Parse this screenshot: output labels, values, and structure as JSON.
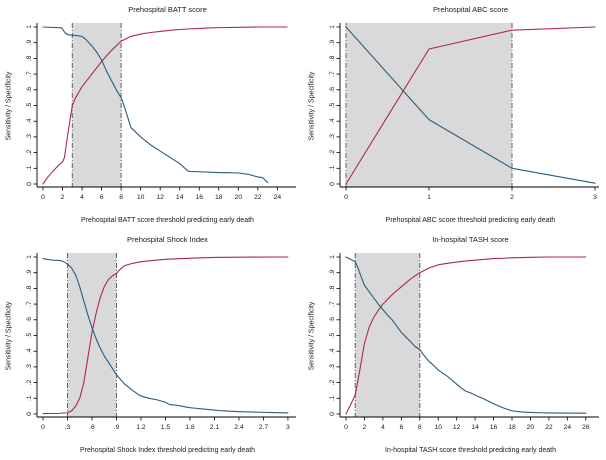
{
  "figure": {
    "background": "#ffffff"
  },
  "colors": {
    "sensitivity_line": "#a92a4e",
    "specificity_line": "#275d7f",
    "band_fill": "#d9d9d9",
    "band_edge": "#5f5f5f",
    "axis_line": "#000000",
    "text": "#1a1a1a"
  },
  "chart_data": [
    {
      "type": "line",
      "title": "Prehospital BATT score",
      "xlabel": "Prehospital BATT score threshold predicting early death",
      "ylabel": "Sensitivity / Specificity",
      "xlim": [
        0,
        25.5
      ],
      "ylim": [
        0,
        1
      ],
      "grid": false,
      "legend": "none",
      "xtick_values": [
        0,
        2,
        4,
        6,
        8,
        10,
        12,
        14,
        16,
        18,
        20,
        22,
        24
      ],
      "xtick_labels": [
        "0",
        "2",
        "4",
        "6",
        "8",
        "10",
        "12",
        "14",
        "16",
        "18",
        "20",
        "22",
        "24"
      ],
      "ytick_values": [
        0,
        0.1,
        0.2,
        0.3,
        0.4,
        0.5,
        0.6,
        0.7,
        0.8,
        0.9,
        1
      ],
      "ytick_labels": [
        "0",
        ".1",
        ".2",
        ".3",
        ".4",
        ".5",
        ".6",
        ".7",
        ".8",
        ".9",
        "1"
      ],
      "shaded_band": {
        "from": 3,
        "to": 8
      },
      "series": [
        {
          "name": "Sensitivity",
          "color_key": "sensitivity_line",
          "points": [
            [
              0,
              0
            ],
            [
              0.5,
              0.045
            ],
            [
              1,
              0.08
            ],
            [
              1.6,
              0.12
            ],
            [
              2,
              0.14
            ],
            [
              2.2,
              0.17
            ],
            [
              2.5,
              0.3
            ],
            [
              2.8,
              0.42
            ],
            [
              3,
              0.5
            ],
            [
              3.3,
              0.545
            ],
            [
              4,
              0.62
            ],
            [
              5,
              0.7
            ],
            [
              6,
              0.78
            ],
            [
              7,
              0.85
            ],
            [
              8,
              0.91
            ],
            [
              8.5,
              0.925
            ],
            [
              9,
              0.94
            ],
            [
              10,
              0.955
            ],
            [
              11,
              0.965
            ],
            [
              12,
              0.972
            ],
            [
              13,
              0.979
            ],
            [
              14,
              0.984
            ],
            [
              15,
              0.988
            ],
            [
              16,
              0.991
            ],
            [
              17,
              0.994
            ],
            [
              18,
              0.996
            ],
            [
              20,
              0.998
            ],
            [
              22,
              1.0
            ],
            [
              25,
              1.0
            ]
          ]
        },
        {
          "name": "Specificity",
          "color_key": "specificity_line",
          "points": [
            [
              0,
              1.0
            ],
            [
              1.9,
              0.995
            ],
            [
              2.3,
              0.96
            ],
            [
              2.6,
              0.95
            ],
            [
              3.5,
              0.945
            ],
            [
              4,
              0.94
            ],
            [
              4.4,
              0.92
            ],
            [
              5,
              0.88
            ],
            [
              5.5,
              0.84
            ],
            [
              6,
              0.79
            ],
            [
              6.5,
              0.72
            ],
            [
              7,
              0.66
            ],
            [
              7.5,
              0.6
            ],
            [
              8,
              0.55
            ],
            [
              8.3,
              0.5
            ],
            [
              8.7,
              0.42
            ],
            [
              9,
              0.36
            ],
            [
              9.5,
              0.33
            ],
            [
              10,
              0.3
            ],
            [
              11,
              0.25
            ],
            [
              12,
              0.21
            ],
            [
              13,
              0.17
            ],
            [
              14,
              0.13
            ],
            [
              14.8,
              0.085
            ],
            [
              15,
              0.08
            ],
            [
              16,
              0.078
            ],
            [
              17,
              0.075
            ],
            [
              18,
              0.073
            ],
            [
              19,
              0.072
            ],
            [
              20,
              0.07
            ],
            [
              21,
              0.062
            ],
            [
              22,
              0.045
            ],
            [
              22.5,
              0.04
            ],
            [
              23,
              0.01
            ]
          ]
        }
      ]
    },
    {
      "type": "line",
      "title": "Prehospital ABC score",
      "xlabel": "Prehospital ABC score threshold predicting early death",
      "ylabel": "Sensitivity / Specificity",
      "xlim": [
        0,
        3
      ],
      "ylim": [
        0,
        1
      ],
      "grid": false,
      "legend": "none",
      "xtick_values": [
        0,
        1,
        2,
        3
      ],
      "xtick_labels": [
        "0",
        "1",
        "2",
        "3"
      ],
      "ytick_values": [
        0,
        0.1,
        0.2,
        0.3,
        0.4,
        0.5,
        0.6,
        0.7,
        0.8,
        0.9,
        1
      ],
      "ytick_labels": [
        "0",
        ".1",
        ".2",
        ".3",
        ".4",
        ".5",
        ".6",
        ".7",
        ".8",
        ".9",
        "1"
      ],
      "shaded_band": {
        "from": 0,
        "to": 2
      },
      "series": [
        {
          "name": "Sensitivity",
          "color_key": "sensitivity_line",
          "points": [
            [
              0,
              0
            ],
            [
              1,
              0.86
            ],
            [
              2,
              0.98
            ],
            [
              3,
              1.0
            ]
          ]
        },
        {
          "name": "Specificity",
          "color_key": "specificity_line",
          "points": [
            [
              0,
              1.0
            ],
            [
              1,
              0.41
            ],
            [
              2,
              0.1
            ],
            [
              3,
              0.005
            ]
          ]
        }
      ]
    },
    {
      "type": "line",
      "title": "Prehospital Shock Index",
      "xlabel": "Prehospital Shock Index threshold predicting early death",
      "ylabel": "Sensitivity / Specificity",
      "xlim": [
        0,
        3.05
      ],
      "ylim": [
        0,
        1
      ],
      "grid": false,
      "legend": "none",
      "xtick_values": [
        0,
        0.3,
        0.6,
        0.9,
        1.2,
        1.5,
        1.8,
        2.1,
        2.4,
        2.7,
        3
      ],
      "xtick_labels": [
        "0",
        ".3",
        ".6",
        ".9",
        "1.2",
        "1.5",
        "1.8",
        "2.1",
        "2.4",
        "2.7",
        "3"
      ],
      "ytick_values": [
        0,
        0.1,
        0.2,
        0.3,
        0.4,
        0.5,
        0.6,
        0.7,
        0.8,
        0.9,
        1
      ],
      "ytick_labels": [
        "0",
        ".1",
        ".2",
        ".3",
        ".4",
        ".5",
        ".6",
        ".7",
        ".8",
        ".9",
        "1"
      ],
      "shaded_band": {
        "from": 0.3,
        "to": 0.9
      },
      "series": [
        {
          "name": "Sensitivity",
          "color_key": "sensitivity_line",
          "points": [
            [
              0,
              0.003
            ],
            [
              0.2,
              0.004
            ],
            [
              0.3,
              0.008
            ],
            [
              0.35,
              0.02
            ],
            [
              0.4,
              0.05
            ],
            [
              0.45,
              0.1
            ],
            [
              0.5,
              0.2
            ],
            [
              0.55,
              0.36
            ],
            [
              0.6,
              0.52
            ],
            [
              0.65,
              0.64
            ],
            [
              0.7,
              0.74
            ],
            [
              0.75,
              0.81
            ],
            [
              0.8,
              0.855
            ],
            [
              0.85,
              0.88
            ],
            [
              0.9,
              0.895
            ],
            [
              0.95,
              0.925
            ],
            [
              1.0,
              0.945
            ],
            [
              1.1,
              0.96
            ],
            [
              1.2,
              0.97
            ],
            [
              1.35,
              0.978
            ],
            [
              1.5,
              0.985
            ],
            [
              1.7,
              0.99
            ],
            [
              1.9,
              0.994
            ],
            [
              2.1,
              0.997
            ],
            [
              2.4,
              0.999
            ],
            [
              3.0,
              1.0
            ]
          ]
        },
        {
          "name": "Specificity",
          "color_key": "specificity_line",
          "points": [
            [
              0,
              0.99
            ],
            [
              0.05,
              0.985
            ],
            [
              0.12,
              0.98
            ],
            [
              0.2,
              0.978
            ],
            [
              0.25,
              0.972
            ],
            [
              0.3,
              0.955
            ],
            [
              0.35,
              0.93
            ],
            [
              0.4,
              0.885
            ],
            [
              0.45,
              0.81
            ],
            [
              0.5,
              0.72
            ],
            [
              0.55,
              0.63
            ],
            [
              0.6,
              0.55
            ],
            [
              0.65,
              0.48
            ],
            [
              0.7,
              0.42
            ],
            [
              0.75,
              0.37
            ],
            [
              0.8,
              0.33
            ],
            [
              0.85,
              0.29
            ],
            [
              0.9,
              0.25
            ],
            [
              0.95,
              0.22
            ],
            [
              1.0,
              0.19
            ],
            [
              1.05,
              0.17
            ],
            [
              1.1,
              0.15
            ],
            [
              1.15,
              0.13
            ],
            [
              1.2,
              0.115
            ],
            [
              1.3,
              0.1
            ],
            [
              1.4,
              0.09
            ],
            [
              1.5,
              0.075
            ],
            [
              1.55,
              0.06
            ],
            [
              1.65,
              0.055
            ],
            [
              1.7,
              0.05
            ],
            [
              1.8,
              0.04
            ],
            [
              1.9,
              0.035
            ],
            [
              2.0,
              0.03
            ],
            [
              2.1,
              0.025
            ],
            [
              2.2,
              0.02
            ],
            [
              2.4,
              0.015
            ],
            [
              2.6,
              0.012
            ],
            [
              2.8,
              0.009
            ],
            [
              3.0,
              0.007
            ]
          ]
        }
      ]
    },
    {
      "type": "line",
      "title": "In-hospital TASH score",
      "xlabel": "In-hospital TASH score threshold predicting early death",
      "ylabel": "Sensitivity / Specificity",
      "xlim": [
        0,
        27
      ],
      "ylim": [
        0,
        1
      ],
      "grid": false,
      "legend": "none",
      "xtick_values": [
        0,
        2,
        4,
        6,
        8,
        10,
        12,
        14,
        16,
        18,
        20,
        22,
        24,
        26
      ],
      "xtick_labels": [
        "0",
        "2",
        "4",
        "6",
        "8",
        "10",
        "12",
        "14",
        "16",
        "18",
        "20",
        "22",
        "24",
        "26"
      ],
      "ytick_values": [
        0,
        0.1,
        0.2,
        0.3,
        0.4,
        0.5,
        0.6,
        0.7,
        0.8,
        0.9,
        1
      ],
      "ytick_labels": [
        "0",
        ".1",
        ".2",
        ".3",
        ".4",
        ".5",
        ".6",
        ".7",
        ".8",
        ".9",
        "1"
      ],
      "shaded_band": {
        "from": 1,
        "to": 8
      },
      "series": [
        {
          "name": "Sensitivity",
          "color_key": "sensitivity_line",
          "points": [
            [
              0,
              0
            ],
            [
              0.5,
              0.06
            ],
            [
              1,
              0.12
            ],
            [
              1.5,
              0.28
            ],
            [
              2,
              0.45
            ],
            [
              2.5,
              0.55
            ],
            [
              3,
              0.615
            ],
            [
              3.5,
              0.66
            ],
            [
              4,
              0.7
            ],
            [
              4.5,
              0.73
            ],
            [
              5,
              0.76
            ],
            [
              5.5,
              0.785
            ],
            [
              6,
              0.81
            ],
            [
              6.5,
              0.835
            ],
            [
              7,
              0.86
            ],
            [
              7.5,
              0.88
            ],
            [
              8,
              0.9
            ],
            [
              8.5,
              0.915
            ],
            [
              9,
              0.93
            ],
            [
              10,
              0.95
            ],
            [
              11,
              0.96
            ],
            [
              12,
              0.968
            ],
            [
              13,
              0.975
            ],
            [
              14,
              0.98
            ],
            [
              15,
              0.985
            ],
            [
              16,
              0.99
            ],
            [
              17,
              0.992
            ],
            [
              18,
              0.995
            ],
            [
              20,
              0.998
            ],
            [
              22,
              1.0
            ],
            [
              26,
              1.0
            ]
          ]
        },
        {
          "name": "Specificity",
          "color_key": "specificity_line",
          "points": [
            [
              0,
              1.0
            ],
            [
              0.5,
              0.985
            ],
            [
              1,
              0.97
            ],
            [
              1.3,
              0.93
            ],
            [
              1.6,
              0.88
            ],
            [
              2,
              0.82
            ],
            [
              2.5,
              0.78
            ],
            [
              3,
              0.74
            ],
            [
              3.5,
              0.7
            ],
            [
              4,
              0.665
            ],
            [
              4.5,
              0.63
            ],
            [
              5,
              0.6
            ],
            [
              5.5,
              0.56
            ],
            [
              6,
              0.52
            ],
            [
              6.5,
              0.49
            ],
            [
              7,
              0.46
            ],
            [
              7.5,
              0.43
            ],
            [
              8,
              0.41
            ],
            [
              8.5,
              0.37
            ],
            [
              9,
              0.335
            ],
            [
              9.5,
              0.31
            ],
            [
              10,
              0.28
            ],
            [
              10.5,
              0.26
            ],
            [
              11,
              0.24
            ],
            [
              11.5,
              0.215
            ],
            [
              12,
              0.19
            ],
            [
              12.5,
              0.165
            ],
            [
              13,
              0.145
            ],
            [
              13.5,
              0.135
            ],
            [
              14,
              0.12
            ],
            [
              15,
              0.095
            ],
            [
              16,
              0.065
            ],
            [
              17,
              0.04
            ],
            [
              18,
              0.02
            ],
            [
              19,
              0.013
            ],
            [
              20,
              0.01
            ],
            [
              21,
              0.008
            ],
            [
              22,
              0.007
            ],
            [
              24,
              0.006
            ],
            [
              26,
              0.005
            ]
          ]
        }
      ]
    }
  ]
}
